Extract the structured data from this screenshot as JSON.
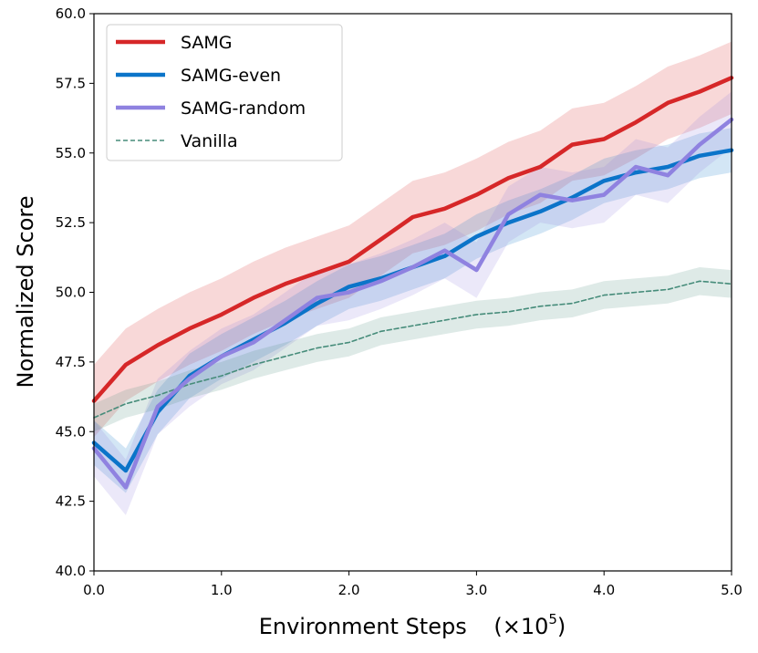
{
  "chart_data": {
    "type": "line",
    "xlabel": "Environment Steps",
    "xlabel_suffix": "(×10",
    "xlabel_exp": "5",
    "xlabel_close": ")",
    "ylabel": "Normalized Score",
    "xlim": [
      0,
      5
    ],
    "ylim": [
      40,
      60
    ],
    "x_ticks": [
      0,
      1,
      2,
      3,
      4,
      5
    ],
    "x_tick_labels": [
      "0.0",
      "1.0",
      "2.0",
      "3.0",
      "4.0",
      "5.0"
    ],
    "y_ticks": [
      40,
      42.5,
      45,
      47.5,
      50,
      52.5,
      55,
      57.5,
      60
    ],
    "y_tick_labels": [
      "40.0",
      "42.5",
      "45.0",
      "47.5",
      "50.0",
      "52.5",
      "55.0",
      "57.5",
      "60.0"
    ],
    "legend_position": "top-left",
    "grid": false,
    "x": [
      0,
      0.25,
      0.5,
      0.75,
      1,
      1.25,
      1.5,
      1.75,
      2,
      2.25,
      2.5,
      2.75,
      3,
      3.25,
      3.5,
      3.75,
      4,
      4.25,
      4.5,
      4.75,
      5
    ],
    "series": [
      {
        "name": "SAMG",
        "color": "#d62728",
        "style": "solid",
        "values": [
          46.1,
          47.4,
          48.1,
          48.7,
          49.2,
          49.8,
          50.3,
          50.7,
          51.1,
          51.9,
          52.7,
          53.0,
          53.5,
          54.1,
          54.5,
          55.3,
          55.5,
          56.1,
          56.8,
          57.2,
          57.7
        ],
        "band": 1.3
      },
      {
        "name": "SAMG-even",
        "color": "#0b74c9",
        "style": "solid",
        "values": [
          44.6,
          43.6,
          45.7,
          47.0,
          47.7,
          48.3,
          48.9,
          49.6,
          50.2,
          50.5,
          50.9,
          51.3,
          52.0,
          52.5,
          52.9,
          53.4,
          54.0,
          54.3,
          54.5,
          54.9,
          55.1
        ],
        "band": 0.8
      },
      {
        "name": "SAMG-random",
        "color": "#8f82e0",
        "style": "solid",
        "values": [
          44.4,
          43.0,
          45.9,
          46.9,
          47.7,
          48.2,
          49.0,
          49.8,
          50.0,
          50.4,
          50.9,
          51.5,
          50.8,
          52.8,
          53.5,
          53.3,
          53.5,
          54.5,
          54.2,
          55.3,
          56.2
        ],
        "band": 1.0
      },
      {
        "name": "Vanilla",
        "color": "#468c7a",
        "style": "dashed",
        "values": [
          45.5,
          46.0,
          46.3,
          46.7,
          47.0,
          47.4,
          47.7,
          48.0,
          48.2,
          48.6,
          48.8,
          49.0,
          49.2,
          49.3,
          49.5,
          49.6,
          49.9,
          50.0,
          50.1,
          50.4,
          50.3
        ],
        "band": 0.5
      }
    ]
  }
}
